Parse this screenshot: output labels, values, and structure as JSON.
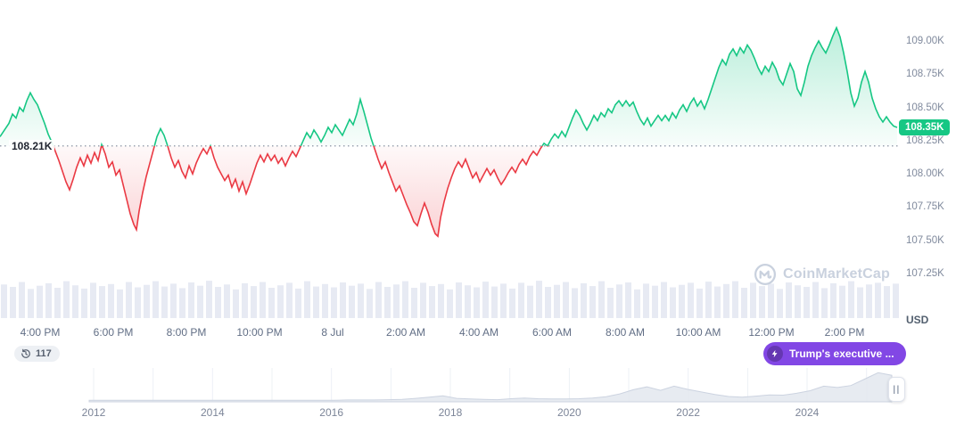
{
  "watermark": {
    "text": "CoinMarketCap"
  },
  "badges": {
    "history_count": "117",
    "news_label": "Trump's executive ..."
  },
  "chart_data": {
    "type": "area",
    "unit_label": "USD",
    "baseline": {
      "value": 108.21,
      "label": "108.21K"
    },
    "current_price": {
      "value": 108.35,
      "label": "108.35K"
    },
    "colors": {
      "up": "#16c784",
      "down": "#ea3943",
      "baseline_dots": "#7c8598",
      "volume": "#e7eaf3",
      "badge_bg": "#16c784",
      "news_badge_bg": "#8247e5",
      "axis_text": "#808a9d",
      "watermark": "#c9d1de"
    },
    "y_axis": {
      "ticks": [
        {
          "label": "109.00K",
          "value": 109.0
        },
        {
          "label": "108.75K",
          "value": 108.75
        },
        {
          "label": "108.50K",
          "value": 108.5
        },
        {
          "label": "108.25K",
          "value": 108.25
        },
        {
          "label": "108.00K",
          "value": 108.0
        },
        {
          "label": "107.75K",
          "value": 107.75
        },
        {
          "label": "107.50K",
          "value": 107.5
        },
        {
          "label": "107.25K",
          "value": 107.25
        }
      ]
    },
    "x_axis": {
      "ticks": [
        "4:00 PM",
        "6:00 PM",
        "8:00 PM",
        "10:00 PM",
        "8 Jul",
        "2:00 AM",
        "4:00 AM",
        "6:00 AM",
        "8:00 AM",
        "10:00 AM",
        "12:00 PM",
        "2:00 PM"
      ]
    },
    "price_series": [
      [
        0,
        108.28
      ],
      [
        5,
        108.33
      ],
      [
        10,
        108.38
      ],
      [
        14,
        108.45
      ],
      [
        18,
        108.42
      ],
      [
        22,
        108.5
      ],
      [
        26,
        108.47
      ],
      [
        30,
        108.55
      ],
      [
        34,
        108.61
      ],
      [
        38,
        108.56
      ],
      [
        42,
        108.52
      ],
      [
        46,
        108.45
      ],
      [
        50,
        108.38
      ],
      [
        54,
        108.3
      ],
      [
        58,
        108.24
      ],
      [
        62,
        108.17
      ],
      [
        66,
        108.1
      ],
      [
        70,
        108.02
      ],
      [
        74,
        107.94
      ],
      [
        78,
        107.88
      ],
      [
        82,
        107.96
      ],
      [
        86,
        108.05
      ],
      [
        90,
        108.12
      ],
      [
        94,
        108.06
      ],
      [
        98,
        108.14
      ],
      [
        102,
        108.08
      ],
      [
        106,
        108.16
      ],
      [
        110,
        108.1
      ],
      [
        114,
        108.22
      ],
      [
        118,
        108.15
      ],
      [
        122,
        108.05
      ],
      [
        126,
        108.09
      ],
      [
        130,
        107.99
      ],
      [
        134,
        108.03
      ],
      [
        138,
        107.92
      ],
      [
        142,
        107.81
      ],
      [
        146,
        107.7
      ],
      [
        150,
        107.62
      ],
      [
        153,
        107.58
      ],
      [
        156,
        107.72
      ],
      [
        160,
        107.86
      ],
      [
        164,
        107.98
      ],
      [
        168,
        108.08
      ],
      [
        172,
        108.18
      ],
      [
        176,
        108.28
      ],
      [
        180,
        108.34
      ],
      [
        184,
        108.29
      ],
      [
        188,
        108.21
      ],
      [
        192,
        108.12
      ],
      [
        196,
        108.05
      ],
      [
        200,
        108.1
      ],
      [
        204,
        108.02
      ],
      [
        208,
        107.97
      ],
      [
        212,
        108.06
      ],
      [
        216,
        108.0
      ],
      [
        220,
        108.08
      ],
      [
        224,
        108.14
      ],
      [
        228,
        108.19
      ],
      [
        232,
        108.15
      ],
      [
        236,
        108.21
      ],
      [
        240,
        108.12
      ],
      [
        244,
        108.05
      ],
      [
        248,
        108.0
      ],
      [
        252,
        107.95
      ],
      [
        256,
        107.99
      ],
      [
        260,
        107.9
      ],
      [
        264,
        107.96
      ],
      [
        268,
        107.87
      ],
      [
        272,
        107.94
      ],
      [
        276,
        107.85
      ],
      [
        280,
        107.92
      ],
      [
        284,
        108.0
      ],
      [
        288,
        108.08
      ],
      [
        292,
        108.14
      ],
      [
        296,
        108.09
      ],
      [
        300,
        108.15
      ],
      [
        304,
        108.1
      ],
      [
        308,
        108.14
      ],
      [
        312,
        108.08
      ],
      [
        316,
        108.12
      ],
      [
        320,
        108.06
      ],
      [
        324,
        108.12
      ],
      [
        328,
        108.17
      ],
      [
        332,
        108.13
      ],
      [
        336,
        108.19
      ],
      [
        340,
        108.25
      ],
      [
        344,
        108.31
      ],
      [
        348,
        108.27
      ],
      [
        352,
        108.33
      ],
      [
        356,
        108.29
      ],
      [
        360,
        108.24
      ],
      [
        364,
        108.29
      ],
      [
        368,
        108.35
      ],
      [
        372,
        108.31
      ],
      [
        376,
        108.37
      ],
      [
        380,
        108.33
      ],
      [
        384,
        108.29
      ],
      [
        388,
        108.35
      ],
      [
        392,
        108.41
      ],
      [
        396,
        108.37
      ],
      [
        400,
        108.45
      ],
      [
        404,
        108.56
      ],
      [
        408,
        108.47
      ],
      [
        412,
        108.37
      ],
      [
        416,
        108.27
      ],
      [
        420,
        108.19
      ],
      [
        424,
        108.11
      ],
      [
        428,
        108.04
      ],
      [
        432,
        108.09
      ],
      [
        436,
        108.01
      ],
      [
        440,
        107.94
      ],
      [
        444,
        107.87
      ],
      [
        448,
        107.91
      ],
      [
        452,
        107.84
      ],
      [
        456,
        107.77
      ],
      [
        460,
        107.71
      ],
      [
        464,
        107.64
      ],
      [
        468,
        107.61
      ],
      [
        472,
        107.7
      ],
      [
        476,
        107.78
      ],
      [
        480,
        107.71
      ],
      [
        484,
        107.62
      ],
      [
        488,
        107.55
      ],
      [
        491,
        107.53
      ],
      [
        494,
        107.67
      ],
      [
        498,
        107.79
      ],
      [
        502,
        107.89
      ],
      [
        506,
        107.97
      ],
      [
        510,
        108.04
      ],
      [
        514,
        108.09
      ],
      [
        518,
        108.05
      ],
      [
        522,
        108.11
      ],
      [
        526,
        108.04
      ],
      [
        530,
        107.97
      ],
      [
        534,
        108.01
      ],
      [
        538,
        107.94
      ],
      [
        542,
        107.99
      ],
      [
        546,
        108.04
      ],
      [
        550,
        107.99
      ],
      [
        554,
        108.03
      ],
      [
        558,
        107.97
      ],
      [
        562,
        107.92
      ],
      [
        566,
        107.96
      ],
      [
        570,
        108.01
      ],
      [
        574,
        108.05
      ],
      [
        578,
        108.01
      ],
      [
        582,
        108.07
      ],
      [
        586,
        108.11
      ],
      [
        590,
        108.07
      ],
      [
        594,
        108.13
      ],
      [
        598,
        108.17
      ],
      [
        602,
        108.14
      ],
      [
        606,
        108.19
      ],
      [
        610,
        108.23
      ],
      [
        614,
        108.21
      ],
      [
        618,
        108.26
      ],
      [
        622,
        108.3
      ],
      [
        626,
        108.27
      ],
      [
        630,
        108.32
      ],
      [
        634,
        108.28
      ],
      [
        638,
        108.35
      ],
      [
        642,
        108.42
      ],
      [
        646,
        108.48
      ],
      [
        650,
        108.44
      ],
      [
        654,
        108.38
      ],
      [
        658,
        108.33
      ],
      [
        662,
        108.38
      ],
      [
        666,
        108.44
      ],
      [
        670,
        108.4
      ],
      [
        674,
        108.46
      ],
      [
        678,
        108.43
      ],
      [
        682,
        108.49
      ],
      [
        686,
        108.46
      ],
      [
        690,
        108.52
      ],
      [
        694,
        108.55
      ],
      [
        698,
        108.51
      ],
      [
        702,
        108.55
      ],
      [
        706,
        108.51
      ],
      [
        710,
        108.54
      ],
      [
        714,
        108.47
      ],
      [
        718,
        108.41
      ],
      [
        722,
        108.37
      ],
      [
        726,
        108.42
      ],
      [
        730,
        108.36
      ],
      [
        734,
        108.4
      ],
      [
        738,
        108.44
      ],
      [
        742,
        108.4
      ],
      [
        746,
        108.44
      ],
      [
        750,
        108.4
      ],
      [
        754,
        108.46
      ],
      [
        758,
        108.42
      ],
      [
        762,
        108.48
      ],
      [
        766,
        108.52
      ],
      [
        770,
        108.47
      ],
      [
        774,
        108.53
      ],
      [
        778,
        108.57
      ],
      [
        782,
        108.51
      ],
      [
        786,
        108.55
      ],
      [
        790,
        108.49
      ],
      [
        794,
        108.56
      ],
      [
        798,
        108.64
      ],
      [
        802,
        108.72
      ],
      [
        806,
        108.8
      ],
      [
        810,
        108.86
      ],
      [
        814,
        108.82
      ],
      [
        818,
        108.9
      ],
      [
        822,
        108.94
      ],
      [
        826,
        108.89
      ],
      [
        830,
        108.95
      ],
      [
        834,
        108.91
      ],
      [
        838,
        108.97
      ],
      [
        842,
        108.93
      ],
      [
        846,
        108.87
      ],
      [
        850,
        108.8
      ],
      [
        854,
        108.75
      ],
      [
        858,
        108.81
      ],
      [
        862,
        108.77
      ],
      [
        866,
        108.84
      ],
      [
        870,
        108.79
      ],
      [
        874,
        108.71
      ],
      [
        878,
        108.67
      ],
      [
        882,
        108.75
      ],
      [
        886,
        108.83
      ],
      [
        890,
        108.77
      ],
      [
        894,
        108.64
      ],
      [
        898,
        108.59
      ],
      [
        902,
        108.69
      ],
      [
        906,
        108.81
      ],
      [
        910,
        108.89
      ],
      [
        914,
        108.95
      ],
      [
        918,
        109.0
      ],
      [
        922,
        108.95
      ],
      [
        926,
        108.91
      ],
      [
        930,
        108.97
      ],
      [
        934,
        109.04
      ],
      [
        938,
        109.1
      ],
      [
        942,
        109.03
      ],
      [
        946,
        108.91
      ],
      [
        950,
        108.77
      ],
      [
        954,
        108.61
      ],
      [
        958,
        108.51
      ],
      [
        962,
        108.57
      ],
      [
        966,
        108.69
      ],
      [
        970,
        108.77
      ],
      [
        974,
        108.69
      ],
      [
        978,
        108.57
      ],
      [
        982,
        108.49
      ],
      [
        986,
        108.43
      ],
      [
        990,
        108.39
      ],
      [
        994,
        108.43
      ],
      [
        998,
        108.39
      ],
      [
        1002,
        108.36
      ],
      [
        1006,
        108.35
      ]
    ],
    "volume_series": [
      0.82,
      0.76,
      0.88,
      0.71,
      0.79,
      0.85,
      0.74,
      0.9,
      0.8,
      0.72,
      0.86,
      0.78,
      0.83,
      0.7,
      0.88,
      0.75,
      0.81,
      0.9,
      0.77,
      0.84,
      0.73,
      0.87,
      0.79,
      0.91,
      0.76,
      0.82,
      0.7,
      0.85,
      0.78,
      0.88,
      0.74,
      0.8,
      0.86,
      0.72,
      0.9,
      0.77,
      0.83,
      0.75,
      0.87,
      0.79,
      0.84,
      0.71,
      0.88,
      0.76,
      0.82,
      0.9,
      0.74,
      0.86,
      0.78,
      0.83,
      0.7,
      0.87,
      0.8,
      0.75,
      0.89,
      0.77,
      0.84,
      0.72,
      0.86,
      0.79,
      0.91,
      0.76,
      0.81,
      0.88,
      0.73,
      0.85,
      0.78,
      0.9,
      0.74,
      0.82,
      0.87,
      0.7,
      0.84,
      0.79,
      0.88,
      0.75,
      0.81,
      0.86,
      0.72,
      0.89,
      0.77,
      0.83,
      0.9,
      0.74,
      0.86,
      0.78,
      0.84,
      0.71,
      0.87,
      0.8,
      0.76,
      0.88,
      0.73,
      0.85,
      0.79,
      0.9,
      0.75,
      0.82,
      0.86,
      0.78,
      0.84
    ]
  },
  "minimap": {
    "years": [
      "2012",
      "2014",
      "2016",
      "2018",
      "2020",
      "2022",
      "2024"
    ],
    "values": [
      0.02,
      0.02,
      0.02,
      0.02,
      0.02,
      0.02,
      0.02,
      0.02,
      0.02,
      0.02,
      0.02,
      0.02,
      0.02,
      0.02,
      0.02,
      0.02,
      0.02,
      0.02,
      0.02,
      0.03,
      0.03,
      0.03,
      0.04,
      0.05,
      0.08,
      0.12,
      0.16,
      0.08,
      0.06,
      0.05,
      0.04,
      0.07,
      0.09,
      0.07,
      0.06,
      0.06,
      0.07,
      0.09,
      0.13,
      0.22,
      0.35,
      0.44,
      0.33,
      0.46,
      0.36,
      0.28,
      0.2,
      0.14,
      0.12,
      0.15,
      0.19,
      0.18,
      0.24,
      0.32,
      0.46,
      0.42,
      0.48,
      0.68,
      0.88,
      0.8
    ]
  }
}
